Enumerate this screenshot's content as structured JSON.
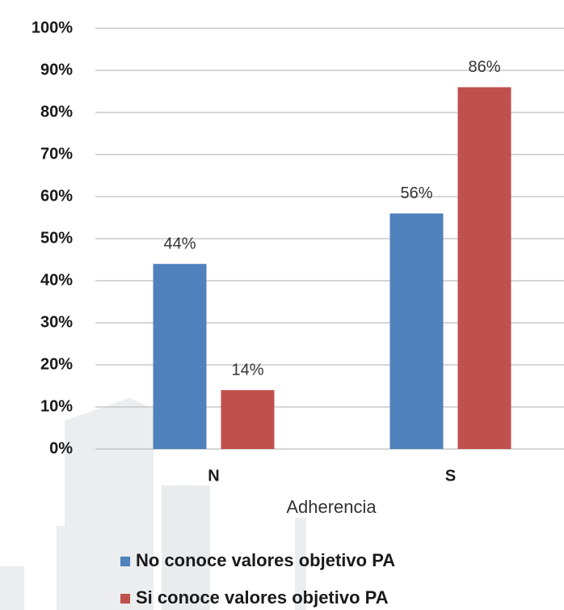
{
  "chart_data": {
    "type": "bar",
    "x_label": "Adherencia",
    "categories": [
      "N",
      "S"
    ],
    "series": [
      {
        "name": "No conoce valores objetivo PA",
        "color": "#4f81bd",
        "values": [
          44,
          56
        ],
        "value_labels": [
          "44%",
          "56%"
        ]
      },
      {
        "name": "Si conoce valores objetivo PA",
        "color": "#c0504d",
        "values": [
          14,
          86
        ],
        "value_labels": [
          "14%",
          "86%"
        ]
      }
    ],
    "ylim": [
      0,
      100
    ],
    "yticks": [
      {
        "value": 0,
        "label": "0%"
      },
      {
        "value": 10,
        "label": "10%"
      },
      {
        "value": 20,
        "label": "20%"
      },
      {
        "value": 30,
        "label": "30%"
      },
      {
        "value": 40,
        "label": "40%"
      },
      {
        "value": 50,
        "label": "50%"
      },
      {
        "value": 60,
        "label": "60%"
      },
      {
        "value": 70,
        "label": "70%"
      },
      {
        "value": 80,
        "label": "80%"
      },
      {
        "value": 90,
        "label": "90%"
      },
      {
        "value": 100,
        "label": "100%"
      }
    ],
    "grid": true,
    "legend": "bottom"
  }
}
